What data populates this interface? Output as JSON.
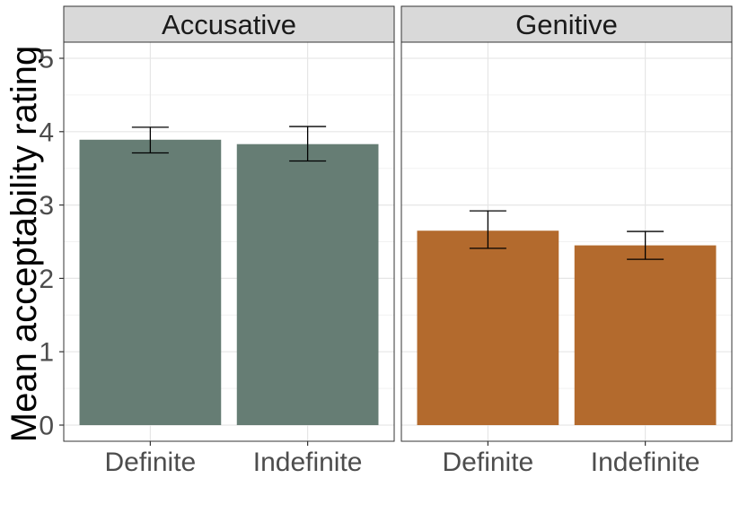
{
  "chart_data": {
    "type": "bar",
    "ylabel": "Mean acceptability rating",
    "xlabel": "",
    "ylim": [
      -0.22,
      5.22
    ],
    "yticks": [
      "0",
      "1",
      "2",
      "3",
      "4",
      "5"
    ],
    "grid": true,
    "categories": [
      "Definite",
      "Indefinite"
    ],
    "panels": [
      {
        "name": "Accusative",
        "color": "#667d74",
        "values": [
          3.89,
          3.83
        ],
        "error_low": [
          3.71,
          3.6
        ],
        "error_high": [
          4.06,
          4.07
        ]
      },
      {
        "name": "Genitive",
        "color": "#b36a2d",
        "values": [
          2.65,
          2.45
        ],
        "error_low": [
          2.41,
          2.26
        ],
        "error_high": [
          2.92,
          2.64
        ]
      }
    ]
  }
}
